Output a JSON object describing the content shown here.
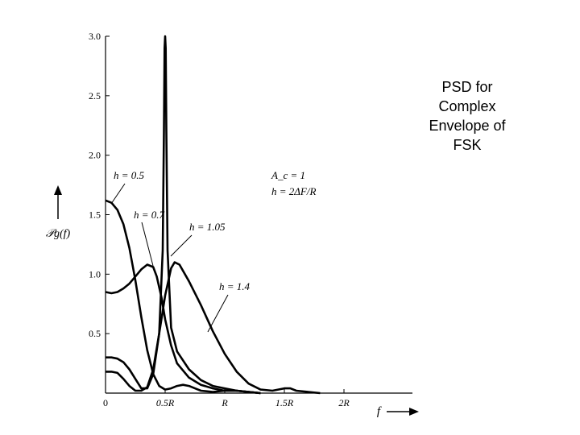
{
  "side_title": [
    "PSD for",
    "Complex",
    "Envelope of",
    "FSK"
  ],
  "chart_data": {
    "type": "line",
    "ylabel": "𝒫g(f)",
    "xlabel": "f",
    "ylim": [
      0,
      3.0
    ],
    "xlim": [
      0,
      2.5
    ],
    "y_ticks": [
      {
        "v": 0.5,
        "label": "0.5"
      },
      {
        "v": 1.0,
        "label": "1.0"
      },
      {
        "v": 1.5,
        "label": "1.5"
      },
      {
        "v": 2.0,
        "label": "2.0"
      },
      {
        "v": 2.5,
        "label": "2.5"
      },
      {
        "v": 3.0,
        "label": "3.0"
      }
    ],
    "x_ticks": [
      {
        "v": 0,
        "label": "0"
      },
      {
        "v": 0.5,
        "label": "0.5R"
      },
      {
        "v": 1.0,
        "label": "R"
      },
      {
        "v": 1.5,
        "label": "1.5R"
      },
      {
        "v": 2.0,
        "label": "2R"
      }
    ],
    "params": [
      "A_c = 1",
      "h = 2ΔF/R"
    ],
    "series": [
      {
        "name": "h = 0.5",
        "points": [
          [
            0,
            1.62
          ],
          [
            0.05,
            1.6
          ],
          [
            0.1,
            1.54
          ],
          [
            0.15,
            1.42
          ],
          [
            0.2,
            1.22
          ],
          [
            0.25,
            0.95
          ],
          [
            0.3,
            0.64
          ],
          [
            0.35,
            0.36
          ],
          [
            0.4,
            0.16
          ],
          [
            0.45,
            0.06
          ],
          [
            0.5,
            0.03
          ],
          [
            0.55,
            0.04
          ],
          [
            0.6,
            0.06
          ],
          [
            0.65,
            0.07
          ],
          [
            0.7,
            0.06
          ],
          [
            0.75,
            0.04
          ],
          [
            0.8,
            0.02
          ],
          [
            0.9,
            0.01
          ],
          [
            1.0,
            0.02
          ],
          [
            1.1,
            0.02
          ],
          [
            1.2,
            0.01
          ],
          [
            1.3,
            0.0
          ]
        ]
      },
      {
        "name": "h = 0.7",
        "points": [
          [
            0,
            0.85
          ],
          [
            0.05,
            0.84
          ],
          [
            0.1,
            0.85
          ],
          [
            0.15,
            0.88
          ],
          [
            0.2,
            0.92
          ],
          [
            0.25,
            0.98
          ],
          [
            0.3,
            1.04
          ],
          [
            0.35,
            1.08
          ],
          [
            0.4,
            1.06
          ],
          [
            0.43,
            0.98
          ],
          [
            0.47,
            0.8
          ],
          [
            0.5,
            0.62
          ],
          [
            0.55,
            0.4
          ],
          [
            0.6,
            0.25
          ],
          [
            0.7,
            0.13
          ],
          [
            0.8,
            0.07
          ],
          [
            0.9,
            0.04
          ],
          [
            1.0,
            0.02
          ],
          [
            1.1,
            0.02
          ],
          [
            1.2,
            0.01
          ],
          [
            1.3,
            0.0
          ]
        ]
      },
      {
        "name": "h = 1.05",
        "points": [
          [
            0,
            0.3
          ],
          [
            0.05,
            0.3
          ],
          [
            0.1,
            0.29
          ],
          [
            0.15,
            0.26
          ],
          [
            0.2,
            0.2
          ],
          [
            0.25,
            0.12
          ],
          [
            0.3,
            0.04
          ],
          [
            0.35,
            0.04
          ],
          [
            0.4,
            0.16
          ],
          [
            0.45,
            0.5
          ],
          [
            0.48,
            1.2
          ],
          [
            0.49,
            2.2
          ],
          [
            0.495,
            2.9
          ],
          [
            0.5,
            3.0
          ],
          [
            0.505,
            2.9
          ],
          [
            0.51,
            2.2
          ],
          [
            0.52,
            1.2
          ],
          [
            0.55,
            0.55
          ],
          [
            0.6,
            0.35
          ],
          [
            0.7,
            0.2
          ],
          [
            0.8,
            0.11
          ],
          [
            0.9,
            0.06
          ],
          [
            1.0,
            0.04
          ],
          [
            1.1,
            0.02
          ],
          [
            1.2,
            0.01
          ],
          [
            1.3,
            0.0
          ]
        ]
      },
      {
        "name": "h = 1.4",
        "points": [
          [
            0,
            0.18
          ],
          [
            0.05,
            0.18
          ],
          [
            0.1,
            0.17
          ],
          [
            0.15,
            0.12
          ],
          [
            0.2,
            0.06
          ],
          [
            0.25,
            0.02
          ],
          [
            0.3,
            0.02
          ],
          [
            0.35,
            0.05
          ],
          [
            0.4,
            0.2
          ],
          [
            0.45,
            0.5
          ],
          [
            0.5,
            0.82
          ],
          [
            0.55,
            1.05
          ],
          [
            0.58,
            1.1
          ],
          [
            0.62,
            1.08
          ],
          [
            0.7,
            0.94
          ],
          [
            0.8,
            0.74
          ],
          [
            0.9,
            0.52
          ],
          [
            1.0,
            0.33
          ],
          [
            1.1,
            0.18
          ],
          [
            1.2,
            0.08
          ],
          [
            1.3,
            0.03
          ],
          [
            1.4,
            0.02
          ],
          [
            1.5,
            0.04
          ],
          [
            1.55,
            0.04
          ],
          [
            1.6,
            0.02
          ],
          [
            1.7,
            0.01
          ],
          [
            1.8,
            0.0
          ]
        ]
      }
    ]
  }
}
